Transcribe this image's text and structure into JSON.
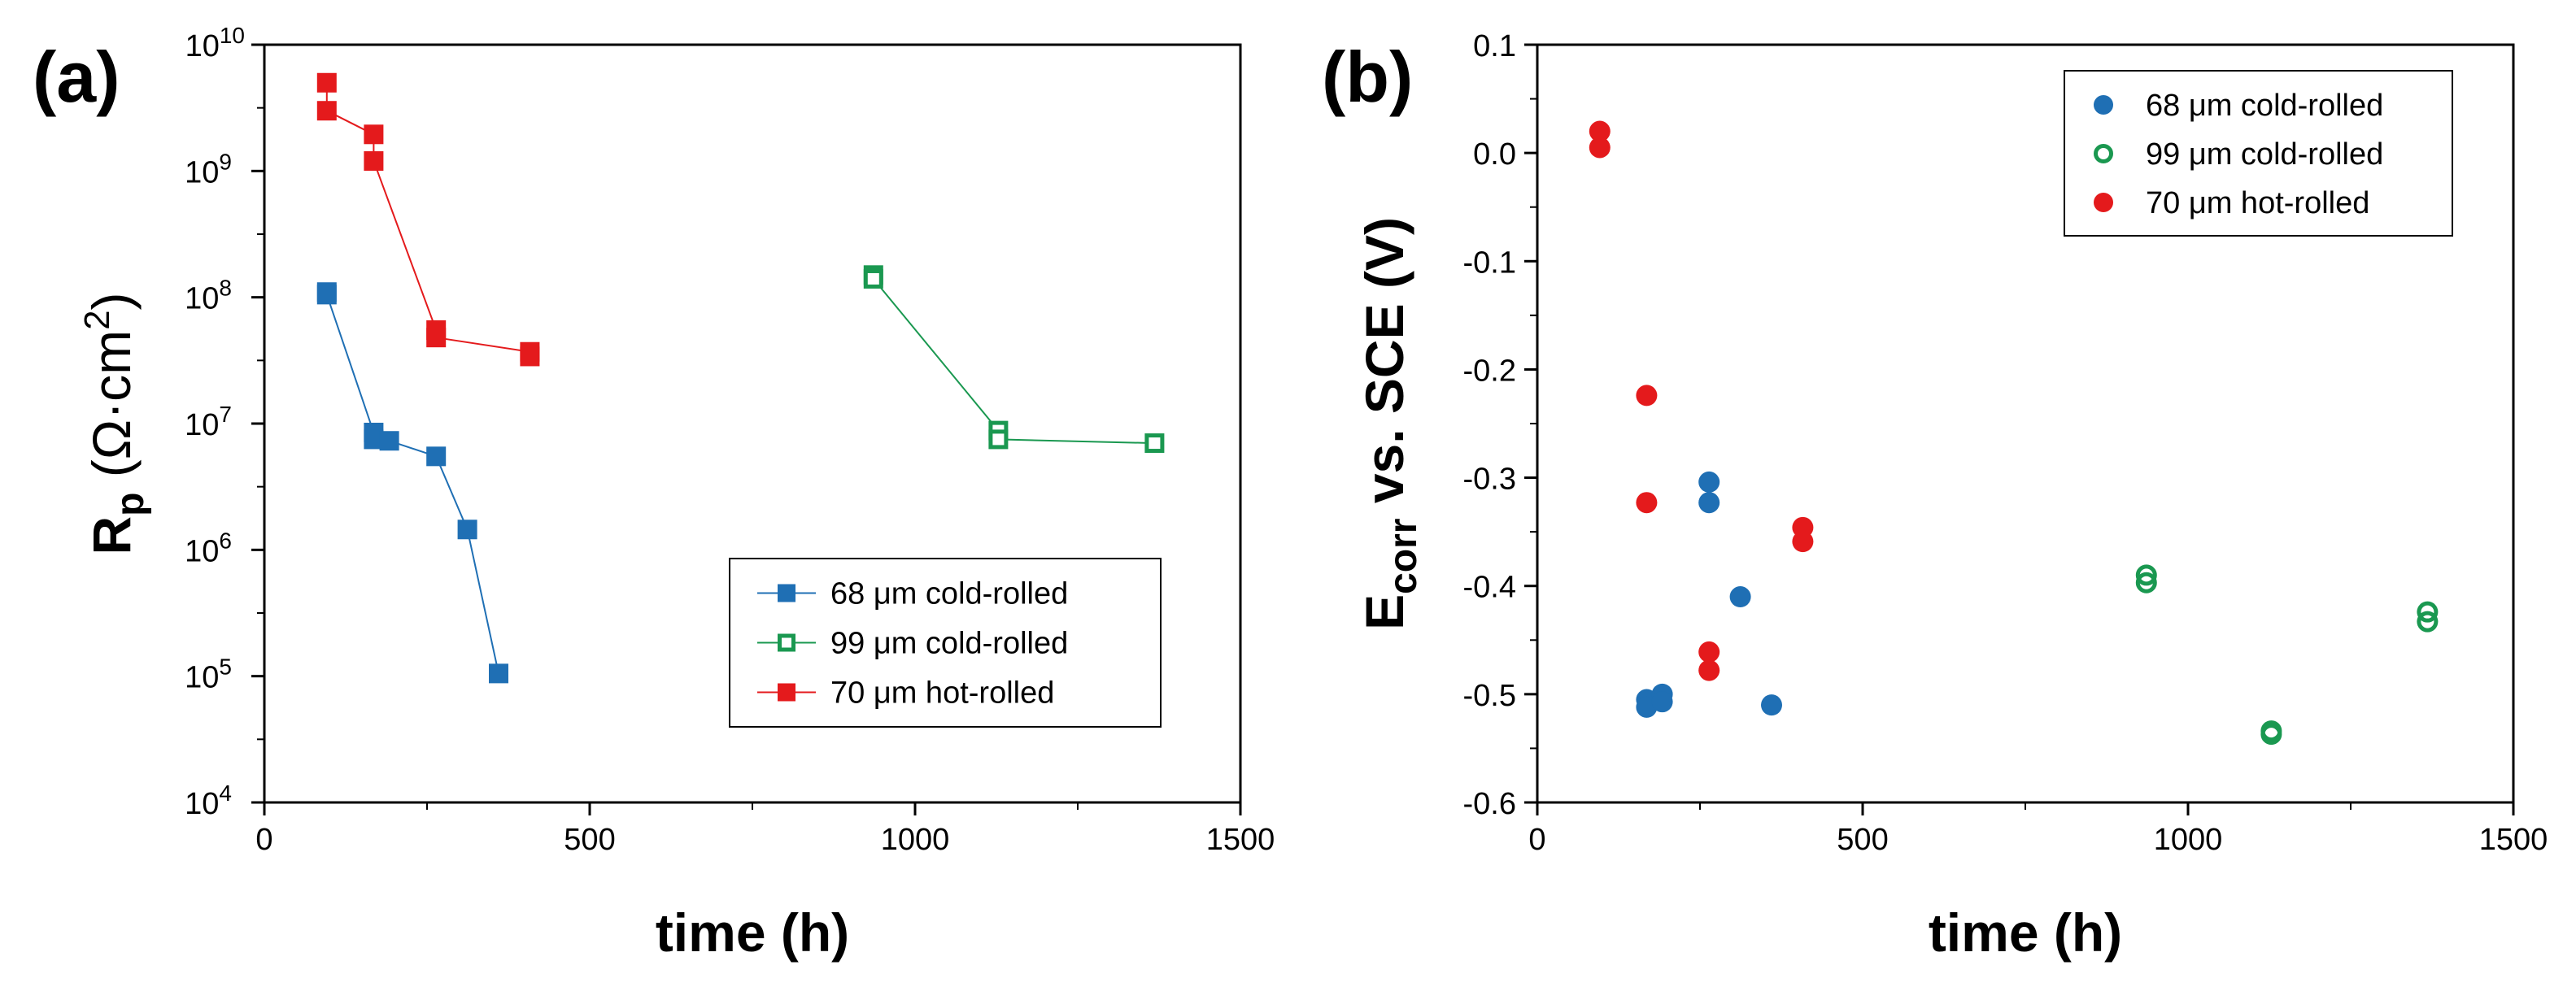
{
  "chart_data": [
    {
      "panel_label": "(a)",
      "type": "line",
      "xlabel": "time (h)",
      "ylabel": "R",
      "ylabel_sub": "p",
      "ylabel_units": " (Ω·cm",
      "ylabel_sup": "2",
      "ylabel_close": ")",
      "xlim": [
        0,
        1500
      ],
      "ylim": [
        10000,
        10000000000
      ],
      "yscale": "log",
      "x_ticks": [
        0,
        500,
        1000,
        1500
      ],
      "x_tick_labels": [
        "0",
        "500",
        "1000",
        "1500"
      ],
      "y_ticks": [
        {
          "base": "10",
          "exp": "4",
          "value": 10000
        },
        {
          "base": "10",
          "exp": "5",
          "value": 100000
        },
        {
          "base": "10",
          "exp": "6",
          "value": 1000000
        },
        {
          "base": "10",
          "exp": "7",
          "value": 10000000
        },
        {
          "base": "10",
          "exp": "8",
          "value": 100000000
        },
        {
          "base": "10",
          "exp": "9",
          "value": 1000000000
        },
        {
          "base": "10",
          "exp": "10",
          "value": 10000000000
        }
      ],
      "legend_position": "bottom-right",
      "series": [
        {
          "name": "68 μm cold-rolled",
          "color": "#1f6fb4",
          "marker": "filled-square",
          "x": [
            96,
            96,
            168,
            168,
            192,
            264,
            312,
            360
          ],
          "y": [
            110000000,
            105000000,
            8500000,
            7500000,
            7300000,
            5500000,
            1450000,
            105000
          ]
        },
        {
          "name": "99 μm cold-rolled",
          "color": "#1a9850",
          "marker": "open-square",
          "x": [
            936,
            936,
            1128,
            1128,
            1368
          ],
          "y": [
            150000000,
            140000000,
            8800000,
            7500000,
            7000000
          ]
        },
        {
          "name": "70 μm hot-rolled",
          "color": "#e41a1c",
          "marker": "filled-square",
          "x": [
            96,
            96,
            168,
            168,
            264,
            264,
            408,
            408
          ],
          "y": [
            5000000000,
            3000000000,
            1950000000,
            1200000000,
            55000000,
            48000000,
            37000000,
            34000000
          ]
        }
      ]
    },
    {
      "panel_label": "(b)",
      "type": "scatter",
      "xlabel": "time (h)",
      "ylabel": "E",
      "ylabel_sub": "corr",
      "ylabel_rest": " vs. SCE (V)",
      "xlim": [
        0,
        1500
      ],
      "ylim": [
        -0.6,
        0.1
      ],
      "x_ticks": [
        0,
        500,
        1000,
        1500
      ],
      "x_tick_labels": [
        "0",
        "500",
        "1000",
        "1500"
      ],
      "y_ticks": [
        0.1,
        0.0,
        -0.1,
        -0.2,
        -0.3,
        -0.4,
        -0.5,
        -0.6
      ],
      "y_tick_labels": [
        "0.1",
        "0.0",
        "-0.1",
        "-0.2",
        "-0.3",
        "-0.4",
        "-0.5",
        "-0.6"
      ],
      "legend_position": "top-right",
      "series": [
        {
          "name": "68 μm cold-rolled",
          "color": "#1f6fb4",
          "marker": "filled-circle",
          "x": [
            168,
            168,
            192,
            192,
            264,
            264,
            312,
            360
          ],
          "y": [
            -0.505,
            -0.512,
            -0.5,
            -0.507,
            -0.304,
            -0.323,
            -0.41,
            -0.51
          ]
        },
        {
          "name": "99 μm cold-rolled",
          "color": "#1a9850",
          "marker": "open-circle",
          "x": [
            936,
            936,
            1128,
            1128,
            1368,
            1368
          ],
          "y": [
            -0.39,
            -0.397,
            -0.534,
            -0.537,
            -0.424,
            -0.433
          ]
        },
        {
          "name": "70 μm hot-rolled",
          "color": "#e41a1c",
          "marker": "filled-circle",
          "x": [
            96,
            96,
            168,
            168,
            264,
            264,
            408,
            408
          ],
          "y": [
            0.02,
            0.005,
            -0.224,
            -0.323,
            -0.461,
            -0.478,
            -0.346,
            -0.359
          ]
        }
      ]
    }
  ]
}
